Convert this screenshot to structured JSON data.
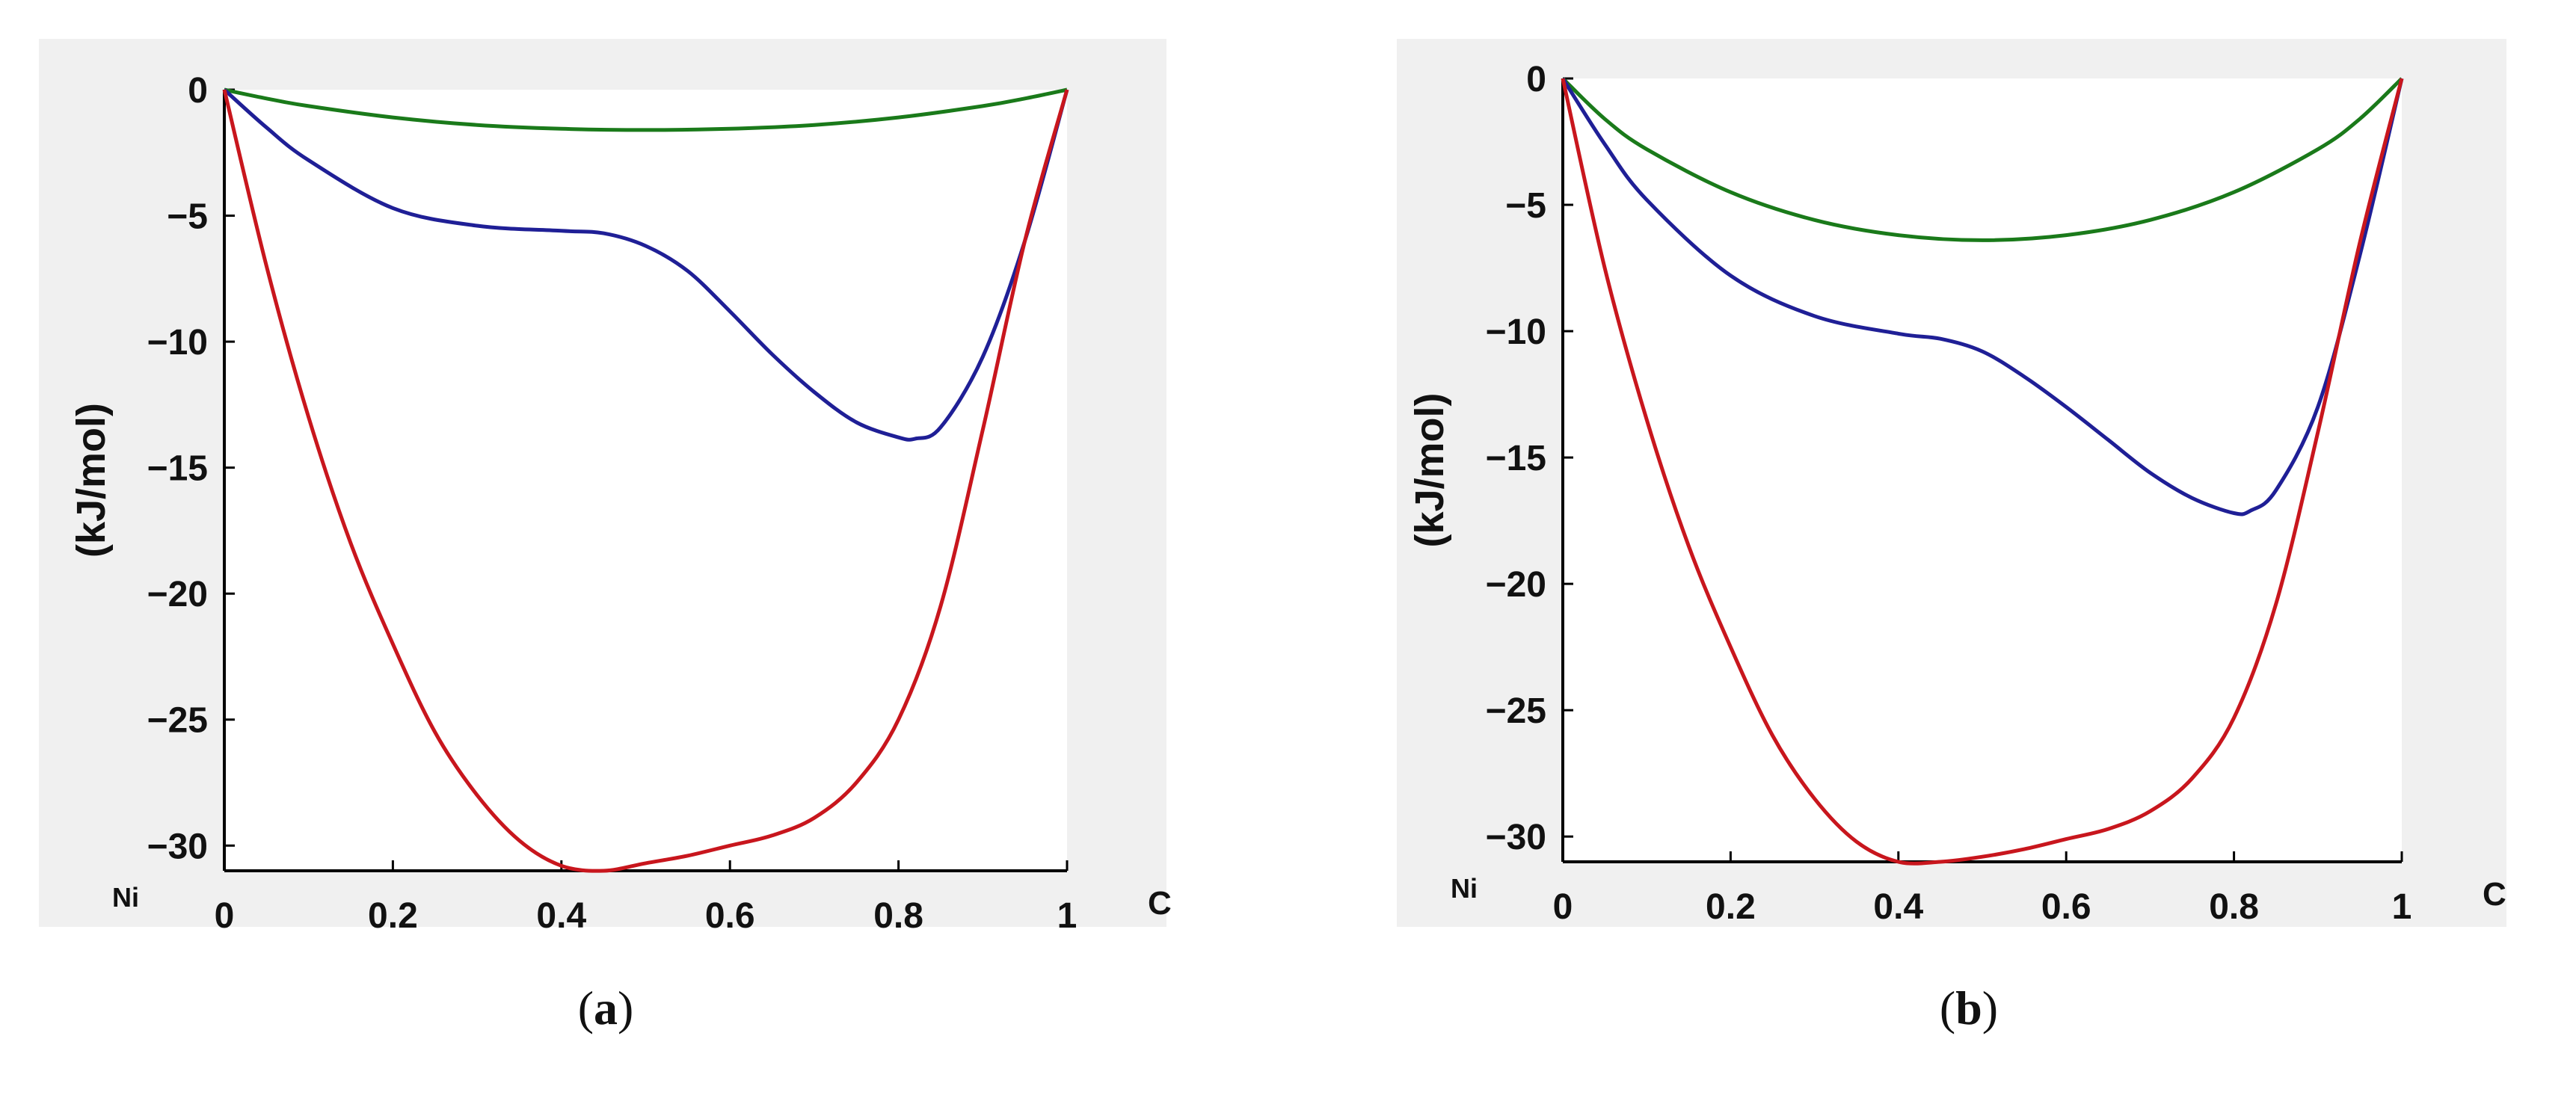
{
  "chart_data": [
    {
      "type": "line",
      "panel_label": "a",
      "ylabel": "(kJ/mol)",
      "x_endpoint_labels": {
        "left": "Ni",
        "right": "C"
      },
      "xlim": [
        0,
        1
      ],
      "ylim": [
        -31,
        0
      ],
      "xticks": [
        "0",
        "0.2",
        "0.4",
        "0.6",
        "0.8",
        "1"
      ],
      "yticks": [
        "0",
        "−5",
        "−10",
        "−15",
        "−20",
        "−25",
        "−30"
      ],
      "series": [
        {
          "name": "green",
          "color": "#1a7a1a",
          "x": [
            0,
            0.05,
            0.1,
            0.2,
            0.3,
            0.4,
            0.5,
            0.6,
            0.7,
            0.8,
            0.9,
            0.95,
            1
          ],
          "y": [
            0,
            -0.35,
            -0.65,
            -1.1,
            -1.4,
            -1.55,
            -1.6,
            -1.55,
            -1.4,
            -1.1,
            -0.65,
            -0.35,
            0
          ]
        },
        {
          "name": "blue",
          "color": "#1f1f96",
          "x": [
            0,
            0.05,
            0.1,
            0.2,
            0.3,
            0.4,
            0.45,
            0.5,
            0.55,
            0.6,
            0.65,
            0.7,
            0.75,
            0.8,
            0.82,
            0.85,
            0.9,
            0.95,
            1
          ],
          "y": [
            0,
            -1.5,
            -2.8,
            -4.7,
            -5.4,
            -5.6,
            -5.7,
            -6.2,
            -7.2,
            -8.8,
            -10.5,
            -12.0,
            -13.2,
            -13.8,
            -13.85,
            -13.4,
            -10.6,
            -6.0,
            0
          ]
        },
        {
          "name": "red",
          "color": "#c8161d",
          "x": [
            0,
            0.05,
            0.1,
            0.15,
            0.2,
            0.25,
            0.3,
            0.35,
            0.4,
            0.45,
            0.5,
            0.55,
            0.6,
            0.65,
            0.7,
            0.75,
            0.8,
            0.85,
            0.9,
            0.95,
            1
          ],
          "y": [
            0,
            -7.0,
            -13.0,
            -18.0,
            -22.0,
            -25.5,
            -28.0,
            -29.8,
            -30.8,
            -31.0,
            -30.7,
            -30.4,
            -30.0,
            -29.6,
            -28.9,
            -27.5,
            -25.0,
            -20.5,
            -13.5,
            -6.0,
            0
          ]
        }
      ]
    },
    {
      "type": "line",
      "panel_label": "b",
      "ylabel": "(kJ/mol)",
      "x_endpoint_labels": {
        "left": "Ni",
        "right": "C"
      },
      "xlim": [
        0,
        1
      ],
      "ylim": [
        -31,
        0
      ],
      "xticks": [
        "0",
        "0.2",
        "0.4",
        "0.6",
        "0.8",
        "1"
      ],
      "yticks": [
        "0",
        "−5",
        "−10",
        "−15",
        "−20",
        "−25",
        "−30"
      ],
      "series": [
        {
          "name": "green",
          "color": "#1a7a1a",
          "x": [
            0,
            0.05,
            0.1,
            0.2,
            0.3,
            0.4,
            0.5,
            0.6,
            0.7,
            0.8,
            0.9,
            0.95,
            1
          ],
          "y": [
            0,
            -1.6,
            -2.8,
            -4.5,
            -5.6,
            -6.2,
            -6.4,
            -6.2,
            -5.6,
            -4.5,
            -2.8,
            -1.6,
            0
          ]
        },
        {
          "name": "blue",
          "color": "#1f1f96",
          "x": [
            0,
            0.05,
            0.1,
            0.2,
            0.3,
            0.4,
            0.45,
            0.5,
            0.55,
            0.6,
            0.65,
            0.7,
            0.75,
            0.8,
            0.82,
            0.85,
            0.9,
            0.95,
            1
          ],
          "y": [
            0,
            -2.6,
            -4.8,
            -7.8,
            -9.4,
            -10.1,
            -10.3,
            -10.8,
            -11.8,
            -13.0,
            -14.3,
            -15.6,
            -16.6,
            -17.2,
            -17.1,
            -16.3,
            -13.0,
            -7.0,
            0
          ]
        },
        {
          "name": "red",
          "color": "#c8161d",
          "x": [
            0,
            0.05,
            0.1,
            0.15,
            0.2,
            0.25,
            0.3,
            0.35,
            0.4,
            0.45,
            0.5,
            0.55,
            0.6,
            0.65,
            0.7,
            0.75,
            0.8,
            0.85,
            0.9,
            0.95,
            1
          ],
          "y": [
            0,
            -7.5,
            -13.5,
            -18.5,
            -22.5,
            -26.0,
            -28.5,
            -30.2,
            -31.0,
            -31.0,
            -30.8,
            -30.5,
            -30.1,
            -29.7,
            -29.0,
            -27.7,
            -25.3,
            -20.8,
            -14.0,
            -6.5,
            0
          ]
        }
      ]
    }
  ],
  "colors": {
    "panel_background": "#f0f0f0",
    "plot_background": "#ffffff",
    "axis": "#000000"
  }
}
